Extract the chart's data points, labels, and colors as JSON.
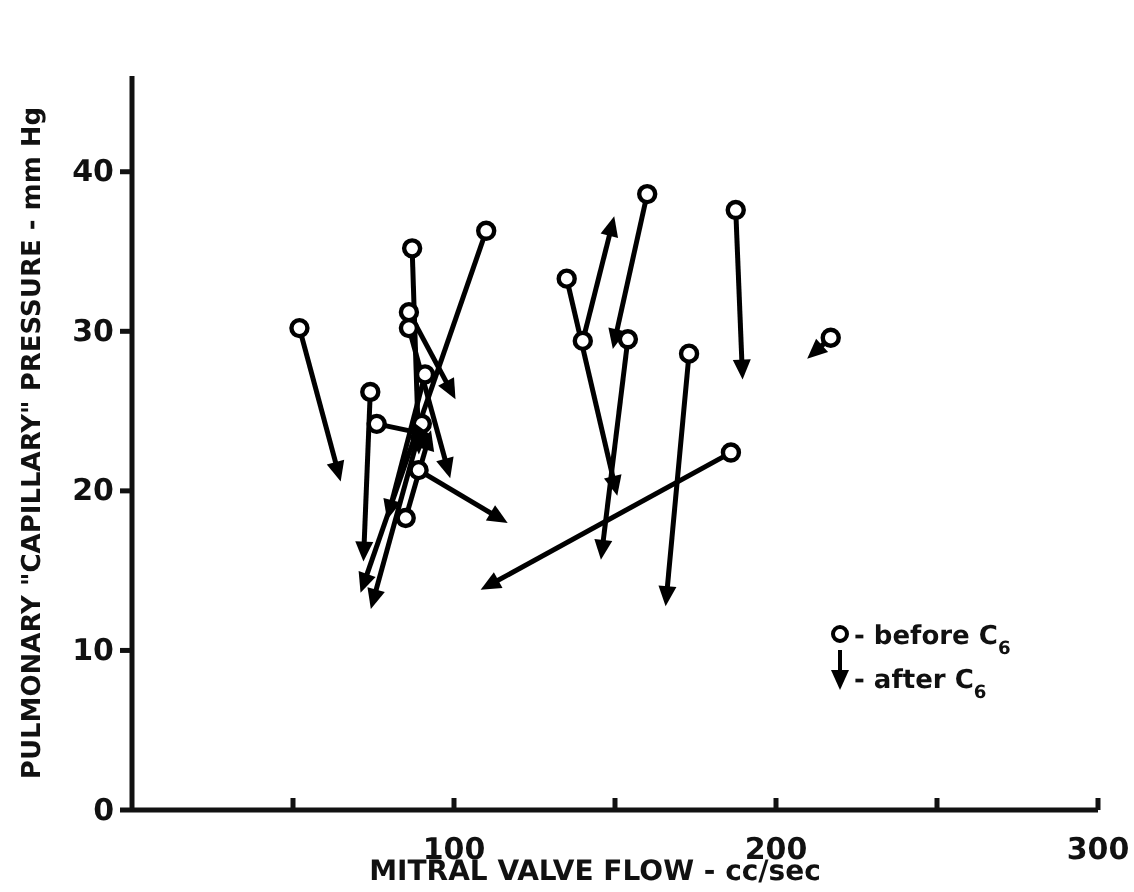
{
  "chart_data": {
    "type": "scatter",
    "xlabel": "MITRAL VALVE FLOW - cc/sec",
    "ylabel": "PULMONARY \"CAPILLARY\" PRESSURE - mm Hg",
    "xlim": [
      0,
      300
    ],
    "xticks": [
      {
        "value": 50,
        "label": null
      },
      100,
      {
        "value": 150,
        "label": null
      },
      200,
      {
        "value": 250,
        "label": null
      },
      300
    ],
    "ylim": [
      0,
      46
    ],
    "yticks": [
      0,
      10,
      20,
      30,
      40
    ],
    "legend": "bottom right",
    "series": [
      {
        "type": "line",
        "color": "#000000",
        "x": [
          52,
          64
        ],
        "values": [
          30.2,
          21.2
        ]
      },
      {
        "type": "line",
        "color": "#000000",
        "x": [
          74,
          72
        ],
        "values": [
          26.2,
          16.2
        ]
      },
      {
        "type": "line",
        "color": "#000000",
        "x": [
          76,
          90
        ],
        "values": [
          24.2,
          23.6
        ]
      },
      {
        "type": "line",
        "color": "#000000",
        "x": [
          87,
          89
        ],
        "values": [
          35.2,
          22.9
        ]
      },
      {
        "type": "line",
        "color": "#000000",
        "x": [
          86,
          99
        ],
        "values": [
          31.2,
          26.3
        ]
      },
      {
        "type": "line",
        "color": "#000000",
        "x": [
          86,
          98
        ],
        "values": [
          30.2,
          21.4
        ]
      },
      {
        "type": "line",
        "color": "#000000",
        "x": [
          91,
          80
        ],
        "values": [
          27.3,
          18.8
        ]
      },
      {
        "type": "line",
        "color": "#000000",
        "x": [
          90,
          75
        ],
        "values": [
          24.2,
          13.2
        ]
      },
      {
        "type": "line",
        "color": "#000000",
        "x": [
          89,
          114
        ],
        "values": [
          21.3,
          18.3
        ]
      },
      {
        "type": "line",
        "color": "#000000",
        "x": [
          85,
          92
        ],
        "values": [
          18.3,
          23.2
        ]
      },
      {
        "type": "line",
        "color": "#000000",
        "x": [
          110,
          72
        ],
        "values": [
          36.3,
          14.2
        ]
      },
      {
        "type": "line",
        "color": "#000000",
        "x": [
          135,
          150
        ],
        "values": [
          33.3,
          20.3
        ]
      },
      {
        "type": "line",
        "color": "#000000",
        "x": [
          140,
          149
        ],
        "values": [
          29.4,
          36.6
        ]
      },
      {
        "type": "line",
        "color": "#000000",
        "x": [
          160,
          150
        ],
        "values": [
          38.6,
          29.5
        ]
      },
      {
        "type": "line",
        "color": "#000000",
        "x": [
          154,
          146
        ],
        "values": [
          29.5,
          16.3
        ]
      },
      {
        "type": "line",
        "color": "#000000",
        "x": [
          173,
          166
        ],
        "values": [
          28.6,
          13.4
        ]
      },
      {
        "type": "line",
        "color": "#000000",
        "x": [
          187.5,
          189.5
        ],
        "values": [
          37.6,
          27.6
        ]
      },
      {
        "type": "line",
        "color": "#000000",
        "x": [
          186,
          111
        ],
        "values": [
          22.4,
          14.1
        ]
      },
      {
        "type": "line",
        "color": "#000000",
        "x": [
          217,
          212
        ],
        "values": [
          29.6,
          28.7
        ]
      },
      {
        "name": "- before C$_{6}$",
        "marker": "circle",
        "color": "#000000",
        "x": [
          52,
          74,
          76,
          87,
          86,
          86,
          91,
          90,
          89,
          85,
          110,
          135,
          140,
          160,
          154,
          173,
          187.5,
          186,
          217
        ],
        "values": [
          30.2,
          26.2,
          24.2,
          35.2,
          31.2,
          30.2,
          27.3,
          24.2,
          21.3,
          18.3,
          36.3,
          33.3,
          29.4,
          38.6,
          29.5,
          28.6,
          37.6,
          22.4,
          29.6
        ]
      },
      {
        "name": "- after C$_{6}$",
        "marker": "triangle",
        "color": "#000000",
        "x": [
          64,
          72,
          90,
          89,
          99,
          98,
          80,
          75,
          114,
          92,
          72,
          150,
          149,
          150,
          146,
          166,
          189.5,
          111,
          212
        ],
        "values": [
          21.2,
          16.2,
          23.6,
          22.9,
          26.3,
          21.4,
          18.8,
          13.2,
          18.3,
          23.2,
          14.2,
          20.3,
          36.6,
          29.5,
          16.3,
          13.4,
          27.6,
          14.1,
          28.7
        ]
      }
    ]
  }
}
